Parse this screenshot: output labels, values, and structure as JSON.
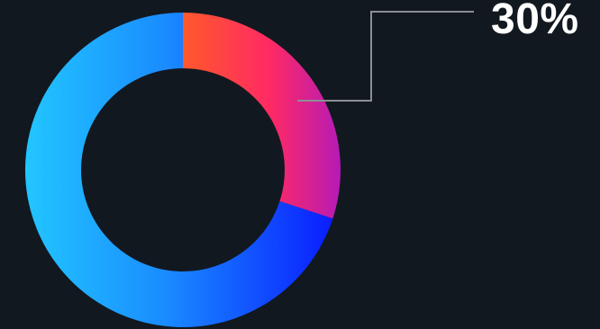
{
  "chart_data": {
    "type": "pie",
    "style": "donut",
    "title": "",
    "slices": [
      {
        "value": 30,
        "color_start": "#ff5a2a",
        "color_mid": "#ff2a63",
        "color_end": "#b41ab8"
      },
      {
        "value": 70,
        "color_start": "#22c6ff",
        "color_mid": "#1a8cff",
        "color_end": "#0a1cff"
      }
    ],
    "highlight_label": "30%",
    "highlight_slice": 0,
    "start_angle_deg": 0,
    "grid": false,
    "legend": "none"
  },
  "colors": {
    "background": "#121820",
    "leader_line": "#8a8f96",
    "label_text": "#ffffff"
  }
}
